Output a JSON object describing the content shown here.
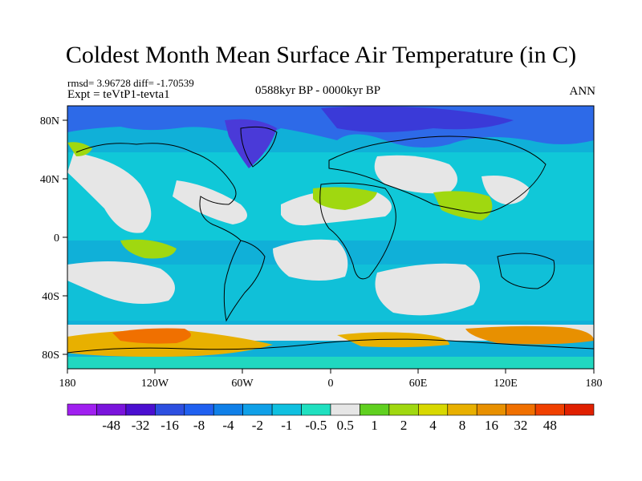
{
  "title": "Coldest Month Mean Surface Air Temperature (in C)",
  "stats": "rmsd= 3.96728 diff= -1.70539",
  "experiment": "Expt = teVtP1-tevta1",
  "period": "0588kyr BP - 0000kyr BP",
  "season": "ANN",
  "lat_labels": [
    "80N",
    "40N",
    "0",
    "40S",
    "80S"
  ],
  "lon_labels": [
    "180",
    "120W",
    "60W",
    "0",
    "60E",
    "120E",
    "180"
  ],
  "colorbar": {
    "labels": [
      "-48",
      "-32",
      "-16",
      "-8",
      "-4",
      "-2",
      "-1",
      "-0.5",
      "0.5",
      "1",
      "2",
      "4",
      "8",
      "16",
      "32",
      "48"
    ],
    "colors": [
      "#a020f0",
      "#7a14dc",
      "#4b0fd0",
      "#2d4fe0",
      "#2060f0",
      "#1080e8",
      "#10a0e8",
      "#10c0e0",
      "#20e0c0",
      "#e6e6e6",
      "#60d020",
      "#a0d810",
      "#d8d800",
      "#e8b000",
      "#e89000",
      "#f07000",
      "#f04000",
      "#e02000"
    ]
  },
  "palette": {
    "ocean_bg": "#10a8d8",
    "white_zone": "#e6e6e6",
    "warm_green": "#a0d810",
    "warm_orange": "#e89000",
    "cold_blue": "#2060f0",
    "coldest": "#4b0fd0"
  }
}
